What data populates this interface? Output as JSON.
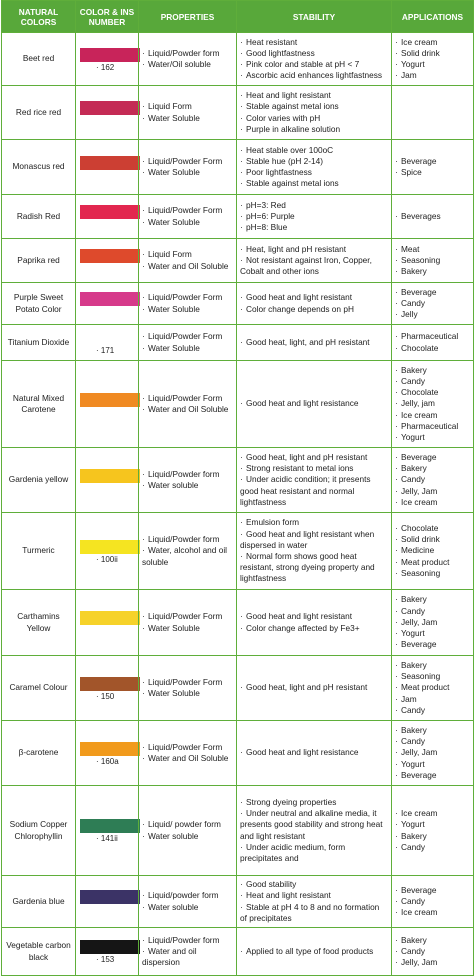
{
  "headers": {
    "natural": "NATURAL COLORS",
    "color_ins": "COLOR & INS NUMBER",
    "properties": "PROPERTIES",
    "stability": "STABILITY",
    "applications": "APPLICATIONS"
  },
  "rows": [
    {
      "name": "Beet red",
      "swatch": "#c8245a",
      "ins": "162",
      "properties": [
        "Liquid/Powder form",
        "Water/Oil soluble"
      ],
      "stability": [
        "Heat resistant",
        "Good lightfastness",
        "Pink color and stable at pH < 7",
        "Ascorbic acid enhances lightfastness"
      ],
      "applications": [
        "Ice cream",
        "Solid drink",
        "Yogurt",
        "Jam"
      ]
    },
    {
      "name": "Red rice red",
      "swatch": "#c42b55",
      "ins": "",
      "properties": [
        "Liquid Form",
        "Water Soluble"
      ],
      "stability": [
        "Heat and light resistant",
        "Stable against metal ions",
        "Color varies with pH",
        "Purple in alkaline solution"
      ],
      "applications": []
    },
    {
      "name": "Monascus red",
      "swatch": "#cc3f33",
      "ins": "",
      "properties": [
        "Liquid/Powder Form",
        "Water Soluble"
      ],
      "stability": [
        "Heat stable over 100oC",
        "Stable hue (pH 2-14)",
        "Poor lightfastness",
        "Stable against metal ions"
      ],
      "applications": [
        "Beverage",
        "Spice"
      ]
    },
    {
      "name": "Radish Red",
      "swatch": "#e2274f",
      "ins": "",
      "properties": [
        "Liquid/Powder Form",
        "Water Soluble"
      ],
      "stability": [
        "pH=3: Red",
        "pH=6: Purple",
        "pH=8: Blue"
      ],
      "applications": [
        "Beverages"
      ]
    },
    {
      "name": "Paprika red",
      "swatch": "#de4a2c",
      "ins": "",
      "properties": [
        "Liquid Form",
        "Water and Oil Soluble"
      ],
      "stability": [
        "Heat, light and pH resistant",
        "Not resistant against Iron, Copper, Cobalt and other ions"
      ],
      "applications": [
        "Meat",
        "Seasoning",
        "Bakery"
      ]
    },
    {
      "name": "Purple Sweet Potato Color",
      "swatch": "#d63a8a",
      "ins": "",
      "properties": [
        "Liquid/Powder Form",
        "Water Soluble"
      ],
      "stability": [
        "Good heat and light resistant",
        "Color change depends on pH"
      ],
      "applications": [
        "Beverage",
        "Candy",
        "Jelly"
      ]
    },
    {
      "name": "Titanium Dioxide",
      "swatch": "",
      "ins": "171",
      "properties": [
        "Liquid/Powder Form",
        "Water Soluble"
      ],
      "stability": [
        "Good heat, light, and pH resistant"
      ],
      "applications": [
        "Pharmaceutical",
        "Chocolate"
      ]
    },
    {
      "name": "Natural Mixed Carotene",
      "swatch": "#f08a22",
      "ins": "",
      "properties": [
        "Liquid/Powder Form",
        "Water and Oil Soluble"
      ],
      "stability": [
        "Good heat and light resistance"
      ],
      "applications": [
        "Bakery",
        "Candy",
        "Chocolate",
        "Jelly, jam",
        "Ice cream",
        "Pharmaceutical",
        "Yogurt"
      ]
    },
    {
      "name": "Gardenia yellow",
      "swatch": "#f6c51e",
      "ins": "",
      "properties": [
        "Liquid/Powder form",
        "Water soluble"
      ],
      "stability": [
        "Good heat, light and pH resistant",
        "Strong resistant to metal ions",
        "Under acidic condition; it presents good heat resistant and normal lightfastness"
      ],
      "applications": [
        "Beverage",
        "Bakery",
        "Candy",
        "Jelly, Jam",
        "Ice cream"
      ]
    },
    {
      "name": "Turmeric",
      "swatch": "#f5e421",
      "ins": "100ii",
      "properties": [
        "Liquid/Powder form",
        "Water, alcohol and oil soluble"
      ],
      "stability": [
        "Emulsion form",
        "Good heat and light resistant when dispersed in water",
        "Normal form shows good heat resistant, strong dyeing property and lightfastness"
      ],
      "applications": [
        "Chocolate",
        "Solid drink",
        "Medicine",
        "Meat product",
        "Seasoning"
      ]
    },
    {
      "name": "Carthamins Yellow",
      "swatch": "#f6d22a",
      "ins": "",
      "properties": [
        "Liquid/Powder Form",
        "Water Soluble"
      ],
      "stability": [
        "Good heat and light resistant",
        "Color change affected by Fe3+"
      ],
      "applications": [
        "Bakery",
        "Candy",
        "Jelly, Jam",
        "Yogurt",
        "Beverage"
      ]
    },
    {
      "name": "Caramel Colour",
      "swatch": "#a2552a",
      "ins": "150",
      "properties": [
        "Liquid/Powder Form",
        "Water Soluble"
      ],
      "stability": [
        "Good heat, light and pH resistant"
      ],
      "applications": [
        "Bakery",
        "Seasoning",
        "Meat product",
        "Jam",
        "Candy"
      ]
    },
    {
      "name": "β-carotene",
      "swatch": "#f19a1c",
      "ins": "160a",
      "properties": [
        "Liquid/Powder Form",
        "Water and Oil Soluble"
      ],
      "stability": [
        "Good heat and light resistance"
      ],
      "applications": [
        "Bakery",
        "Candy",
        "Jelly, Jam",
        "Yogurt",
        "Beverage"
      ]
    },
    {
      "name": "Sodium Copper Chlorophyllin",
      "swatch": "#2e7d55",
      "ins": "141ii",
      "properties": [
        "Liquid/ powder form",
        "Water soluble"
      ],
      "stability": [
        "Strong dyeing properties",
        "Under neutral and alkaline media, it presents good stability and strong heat and light resistant",
        "Under acidic medium, form precipitates and"
      ],
      "applications": [
        "Ice cream",
        "Yogurt",
        "Bakery",
        "Candy"
      ]
    },
    {
      "name": "Gardenia blue",
      "swatch": "#3b3366",
      "ins": "",
      "properties": [
        "Liquid/powder form",
        "Water soluble"
      ],
      "stability": [
        "Good stability",
        "Heat and light resistant",
        "Stable at pH 4 to 8 and no formation of precipitates"
      ],
      "applications": [
        "Beverage",
        "Candy",
        "Ice cream"
      ]
    },
    {
      "name": "Vegetable carbon black",
      "swatch": "#151515",
      "ins": "153",
      "properties": [
        "Liquid/Powder form",
        "Water and oil dispersion"
      ],
      "stability": [
        "Applied to all type of food products"
      ],
      "applications": [
        "Bakery",
        "Candy",
        "Jelly, Jam"
      ]
    }
  ]
}
